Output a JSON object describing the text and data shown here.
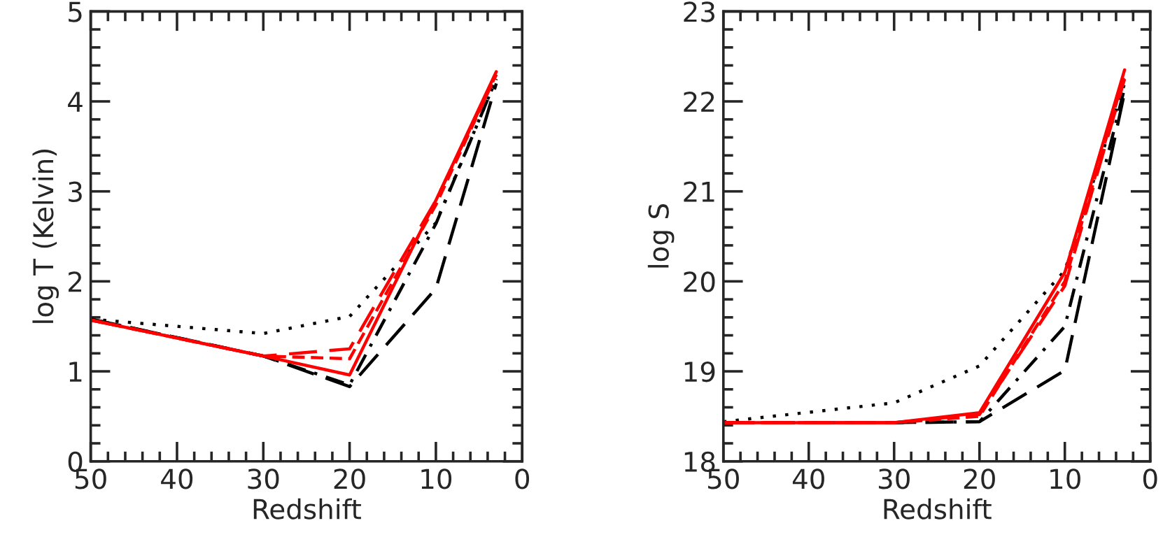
{
  "chart_data": [
    {
      "type": "line",
      "xlabel": "Redshift",
      "ylabel": "log T (Kelvin)",
      "x": [
        50,
        30,
        20,
        10,
        3
      ],
      "xlim": [
        50,
        0
      ],
      "ylim": [
        0,
        5
      ],
      "grid": false,
      "xticks": [
        0,
        {
          "value": 2,
          "label": null
        },
        {
          "value": 4,
          "label": null
        },
        {
          "value": 6,
          "label": null
        },
        {
          "value": 8,
          "label": null
        },
        10,
        {
          "value": 12,
          "label": null
        },
        {
          "value": 14,
          "label": null
        },
        {
          "value": 16,
          "label": null
        },
        {
          "value": 18,
          "label": null
        },
        20,
        {
          "value": 22,
          "label": null
        },
        {
          "value": 24,
          "label": null
        },
        {
          "value": 26,
          "label": null
        },
        {
          "value": 28,
          "label": null
        },
        30,
        {
          "value": 32,
          "label": null
        },
        {
          "value": 34,
          "label": null
        },
        {
          "value": 36,
          "label": null
        },
        {
          "value": 38,
          "label": null
        },
        40,
        {
          "value": 42,
          "label": null
        },
        {
          "value": 44,
          "label": null
        },
        {
          "value": 46,
          "label": null
        },
        {
          "value": 48,
          "label": null
        },
        50
      ],
      "yticks": [
        0,
        {
          "value": 0.2,
          "label": null
        },
        {
          "value": 0.4,
          "label": null
        },
        {
          "value": 0.6,
          "label": null
        },
        {
          "value": 0.8,
          "label": null
        },
        1,
        {
          "value": 1.2,
          "label": null
        },
        {
          "value": 1.4,
          "label": null
        },
        {
          "value": 1.6,
          "label": null
        },
        {
          "value": 1.8,
          "label": null
        },
        2,
        {
          "value": 2.2,
          "label": null
        },
        {
          "value": 2.4,
          "label": null
        },
        {
          "value": 2.6,
          "label": null
        },
        {
          "value": 2.8,
          "label": null
        },
        3,
        {
          "value": 3.2,
          "label": null
        },
        {
          "value": 3.4,
          "label": null
        },
        {
          "value": 3.6,
          "label": null
        },
        {
          "value": 3.8,
          "label": null
        },
        4,
        {
          "value": 4.2,
          "label": null
        },
        {
          "value": 4.4,
          "label": null
        },
        {
          "value": 4.6,
          "label": null
        },
        {
          "value": 4.8,
          "label": null
        },
        5
      ],
      "series": [
        {
          "color": "#000000",
          "line_style": "dotted",
          "values": [
            1.58,
            1.42,
            1.61,
            2.65,
            4.25
          ]
        },
        {
          "color": "#000000",
          "line_style": "longdash",
          "values": [
            1.58,
            1.17,
            0.83,
            1.92,
            4.2
          ]
        },
        {
          "color": "#000000",
          "line_style": "dashdot",
          "values": [
            1.58,
            1.17,
            0.85,
            2.64,
            4.25
          ]
        },
        {
          "color": "#ff0000",
          "line_style": "dashed",
          "values": [
            1.57,
            1.17,
            1.14,
            2.85,
            4.3
          ]
        },
        {
          "color": "#ff0000",
          "line_style": "longdash",
          "values": [
            1.57,
            1.17,
            1.25,
            2.9,
            4.3
          ]
        },
        {
          "color": "#ff0000",
          "line_style": "solid",
          "values": [
            1.57,
            1.17,
            0.96,
            2.9,
            4.33
          ]
        }
      ]
    },
    {
      "type": "line",
      "xlabel": "Redshift",
      "ylabel": "log S",
      "x": [
        50,
        30,
        20,
        10,
        3
      ],
      "xlim": [
        50,
        0
      ],
      "ylim": [
        18,
        23
      ],
      "grid": false,
      "xticks": [
        0,
        {
          "value": 2,
          "label": null
        },
        {
          "value": 4,
          "label": null
        },
        {
          "value": 6,
          "label": null
        },
        {
          "value": 8,
          "label": null
        },
        10,
        {
          "value": 12,
          "label": null
        },
        {
          "value": 14,
          "label": null
        },
        {
          "value": 16,
          "label": null
        },
        {
          "value": 18,
          "label": null
        },
        20,
        {
          "value": 22,
          "label": null
        },
        {
          "value": 24,
          "label": null
        },
        {
          "value": 26,
          "label": null
        },
        {
          "value": 28,
          "label": null
        },
        30,
        {
          "value": 32,
          "label": null
        },
        {
          "value": 34,
          "label": null
        },
        {
          "value": 36,
          "label": null
        },
        {
          "value": 38,
          "label": null
        },
        40,
        {
          "value": 42,
          "label": null
        },
        {
          "value": 44,
          "label": null
        },
        {
          "value": 46,
          "label": null
        },
        {
          "value": 48,
          "label": null
        },
        50
      ],
      "yticks": [
        18,
        {
          "value": 18.2,
          "label": null
        },
        {
          "value": 18.4,
          "label": null
        },
        {
          "value": 18.6,
          "label": null
        },
        {
          "value": 18.8,
          "label": null
        },
        19,
        {
          "value": 19.2,
          "label": null
        },
        {
          "value": 19.4,
          "label": null
        },
        {
          "value": 19.6,
          "label": null
        },
        {
          "value": 19.8,
          "label": null
        },
        20,
        {
          "value": 20.2,
          "label": null
        },
        {
          "value": 20.4,
          "label": null
        },
        {
          "value": 20.6,
          "label": null
        },
        {
          "value": 20.8,
          "label": null
        },
        21,
        {
          "value": 21.2,
          "label": null
        },
        {
          "value": 21.4,
          "label": null
        },
        {
          "value": 21.6,
          "label": null
        },
        {
          "value": 21.8,
          "label": null
        },
        22,
        {
          "value": 22.2,
          "label": null
        },
        {
          "value": 22.4,
          "label": null
        },
        {
          "value": 22.6,
          "label": null
        },
        {
          "value": 22.8,
          "label": null
        },
        23
      ],
      "series": [
        {
          "color": "#000000",
          "line_style": "dotted",
          "values": [
            18.44,
            18.65,
            19.06,
            20.12,
            22.2
          ]
        },
        {
          "color": "#000000",
          "line_style": "longdash",
          "values": [
            18.43,
            18.43,
            18.44,
            19.01,
            22.1
          ]
        },
        {
          "color": "#000000",
          "line_style": "dashdot",
          "values": [
            18.43,
            18.43,
            18.44,
            19.5,
            22.15
          ]
        },
        {
          "color": "#ff0000",
          "line_style": "dashed",
          "values": [
            18.43,
            18.43,
            18.5,
            20.0,
            22.3
          ]
        },
        {
          "color": "#ff0000",
          "line_style": "longdash",
          "values": [
            18.43,
            18.43,
            18.52,
            19.95,
            22.25
          ]
        },
        {
          "color": "#ff0000",
          "line_style": "solid",
          "values": [
            18.43,
            18.43,
            18.54,
            20.1,
            22.35
          ]
        }
      ]
    }
  ]
}
